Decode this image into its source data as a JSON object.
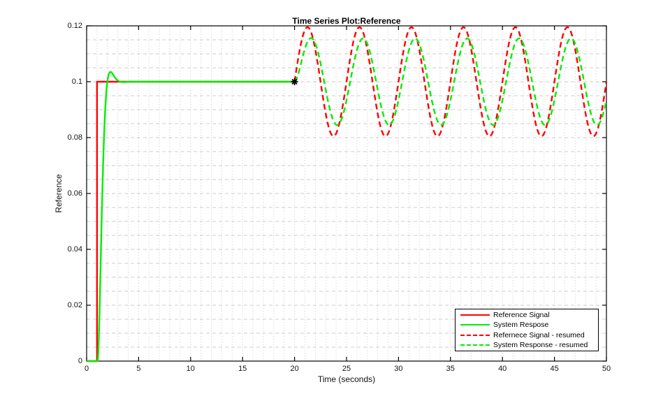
{
  "chart_data": {
    "type": "line",
    "title": "Time Series Plot:Reference",
    "xlabel": "Time (seconds)",
    "ylabel": "Reference",
    "xlim": [
      0,
      50
    ],
    "ylim": [
      0,
      0.12
    ],
    "xticks": [
      0,
      5,
      10,
      15,
      20,
      25,
      30,
      35,
      40,
      45,
      50
    ],
    "xtick_labels": [
      "0",
      "5",
      "10",
      "15",
      "20",
      "25",
      "30",
      "35",
      "40",
      "45",
      "50"
    ],
    "yticks": [
      0,
      0.02,
      0.04,
      0.06,
      0.08,
      0.1,
      0.12
    ],
    "ytick_labels": [
      "0",
      "0.02",
      "0.04",
      "0.06",
      "0.08",
      "0.1",
      "0.12"
    ],
    "grid": {
      "minor_x_step": 1,
      "minor_y_step": 0.005,
      "h_line_color": "#cccccc",
      "v_line_color": "#d9d9d9",
      "h_dash": "5 4",
      "v_dash": "1.5 2.5"
    },
    "axis_color": "#000000",
    "background": "#ffffff",
    "marker": {
      "x": 20,
      "y": 0.1,
      "shape": "asterisk",
      "color": "#000000"
    },
    "legend": {
      "position": "bottom-right",
      "border_color": "#000000",
      "background": "#ffffff"
    },
    "series": [
      {
        "name": "Reference Signal",
        "color": "#ff0000",
        "line": "solid",
        "width": 2.4,
        "model": {
          "kind": "polyline",
          "points": [
            [
              0,
              0
            ],
            [
              1,
              0
            ],
            [
              1,
              0.1
            ],
            [
              20,
              0.1
            ]
          ]
        }
      },
      {
        "name": "System Respose",
        "color": "#00ee00",
        "line": "solid",
        "width": 2.4,
        "model": {
          "kind": "second_order_step",
          "flat_from": 0,
          "t_start": 1.05,
          "t_end": 20,
          "y_final": 0.1,
          "zeta": 0.73,
          "wn": 3.7,
          "overshoot_peak_t": 2.3,
          "overshoot_peak_y": 0.1035
        }
      },
      {
        "name": "Refernece Signal - resumed",
        "color": "#ff0000",
        "line": "dashed",
        "width": 2.4,
        "model": {
          "kind": "sine",
          "t_start": 20,
          "t_end": 50,
          "mean": 0.1,
          "amplitude": 0.0195,
          "period": 5,
          "phase_zero_t": 20
        }
      },
      {
        "name": "System Response - resumed",
        "color": "#00ee00",
        "line": "dashed",
        "width": 2.4,
        "model": {
          "kind": "sine",
          "t_start": 20,
          "t_end": 50,
          "mean": 0.1,
          "amplitude": 0.0155,
          "period": 5,
          "phase_zero_t": 20.35,
          "smooth_start_tau": 0.4
        }
      }
    ]
  }
}
